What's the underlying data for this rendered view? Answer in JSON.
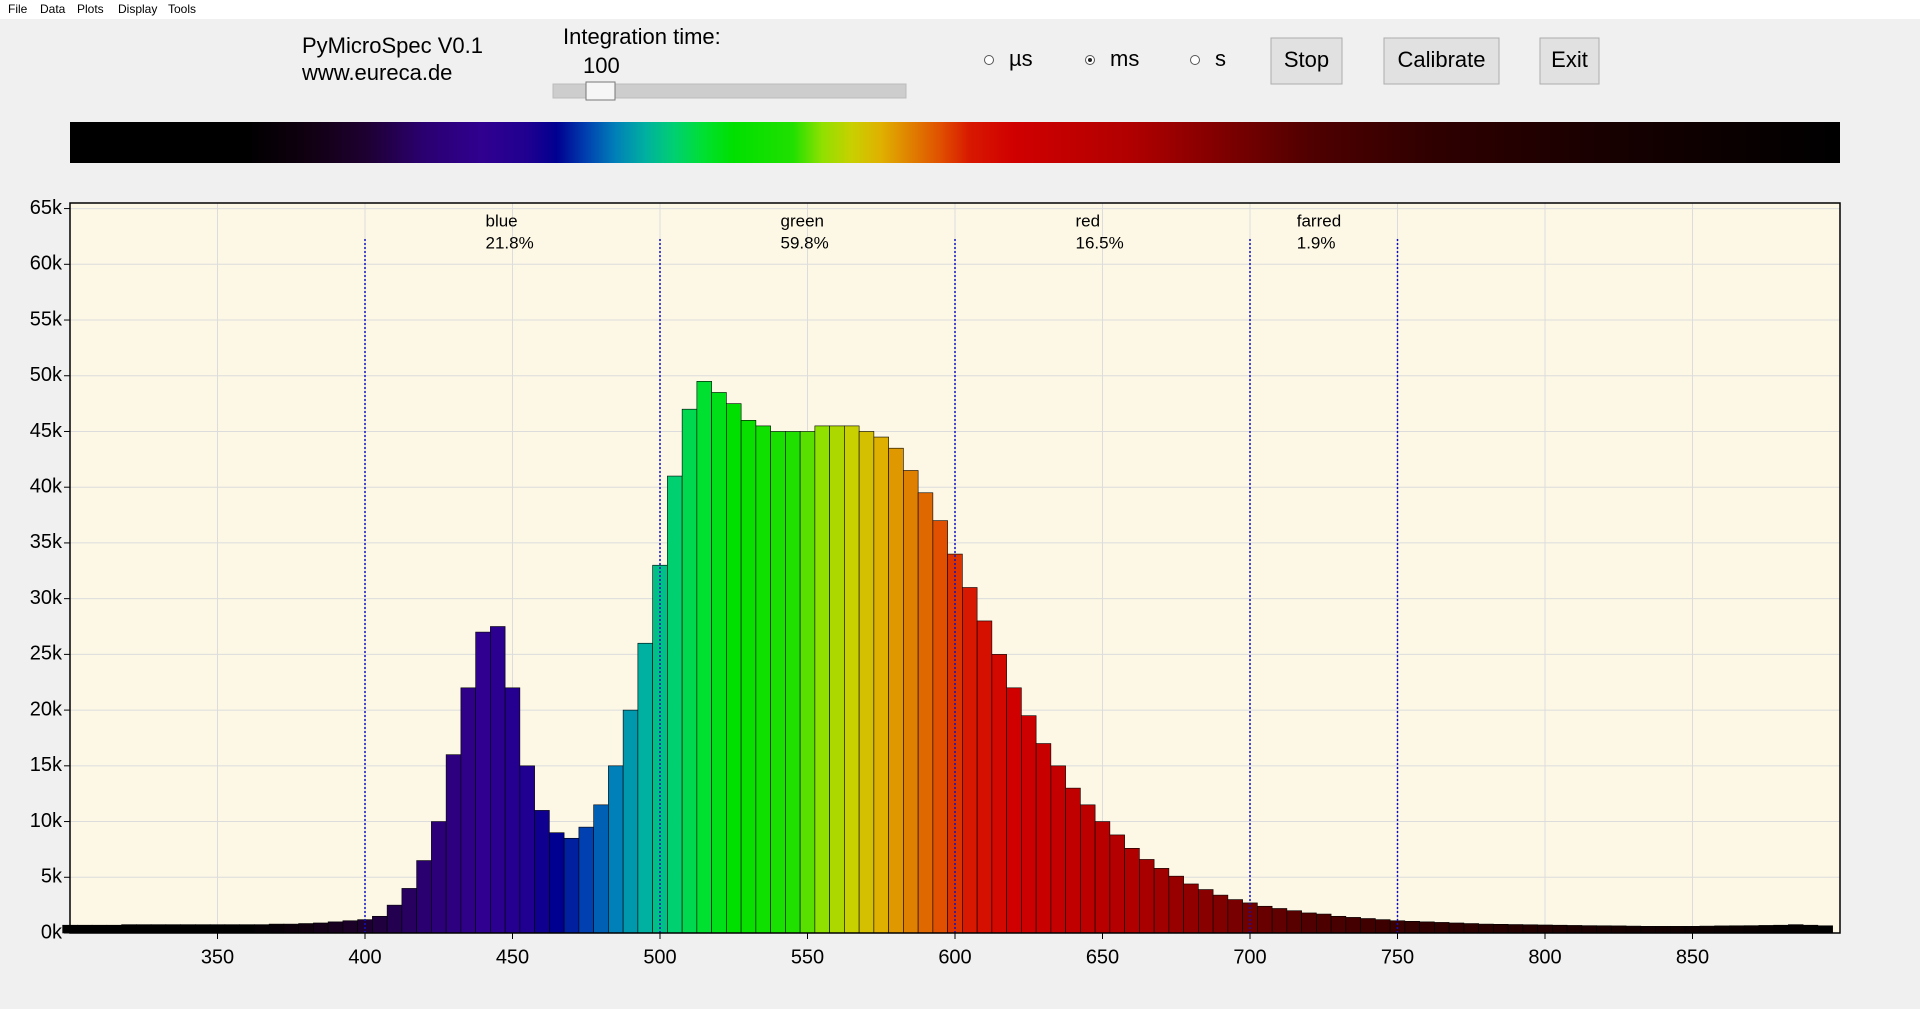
{
  "menu": [
    "File",
    "Data",
    "Plots",
    "Display",
    "Tools"
  ],
  "header": {
    "title": "PyMicroSpec V0.1",
    "url": "www.eureca.de"
  },
  "integration": {
    "label": "Integration time:",
    "value": 100
  },
  "units": {
    "options": [
      "µs",
      "ms",
      "s"
    ],
    "selected": 1
  },
  "buttons": [
    "Stop",
    "Calibrate",
    "Exit"
  ],
  "chart_data": {
    "type": "bar",
    "x": [
      300,
      305,
      310,
      315,
      320,
      325,
      330,
      335,
      340,
      345,
      350,
      355,
      360,
      365,
      370,
      375,
      380,
      385,
      390,
      395,
      400,
      405,
      410,
      415,
      420,
      425,
      430,
      435,
      440,
      445,
      450,
      455,
      460,
      465,
      470,
      475,
      480,
      485,
      490,
      495,
      500,
      505,
      510,
      515,
      520,
      525,
      530,
      535,
      540,
      545,
      550,
      555,
      560,
      565,
      570,
      575,
      580,
      585,
      590,
      595,
      600,
      605,
      610,
      615,
      620,
      625,
      630,
      635,
      640,
      645,
      650,
      655,
      660,
      665,
      670,
      675,
      680,
      685,
      690,
      695,
      700,
      705,
      710,
      715,
      720,
      725,
      730,
      735,
      740,
      745,
      750,
      755,
      760,
      765,
      770,
      775,
      780,
      785,
      790,
      795,
      800,
      805,
      810,
      815,
      820,
      825,
      830,
      835,
      840,
      845,
      850,
      855,
      860,
      865,
      870,
      875,
      880,
      885,
      890,
      895
    ],
    "values": [
      700,
      700,
      700,
      700,
      750,
      750,
      750,
      750,
      750,
      750,
      750,
      750,
      750,
      750,
      800,
      800,
      850,
      900,
      1000,
      1100,
      1200,
      1500,
      2500,
      4000,
      6500,
      10000,
      16000,
      22000,
      27000,
      27500,
      22000,
      15000,
      11000,
      9000,
      8500,
      9500,
      11500,
      15000,
      20000,
      26000,
      33000,
      41000,
      47000,
      49500,
      48500,
      47500,
      46000,
      45500,
      45000,
      45000,
      45000,
      45500,
      45500,
      45500,
      45000,
      44500,
      43500,
      41500,
      39500,
      37000,
      34000,
      31000,
      28000,
      25000,
      22000,
      19500,
      17000,
      15000,
      13000,
      11500,
      10000,
      8800,
      7600,
      6600,
      5800,
      5100,
      4400,
      3900,
      3400,
      3000,
      2700,
      2400,
      2200,
      2000,
      1800,
      1700,
      1500,
      1400,
      1300,
      1200,
      1100,
      1050,
      1000,
      950,
      900,
      850,
      800,
      780,
      760,
      740,
      720,
      700,
      680,
      660,
      650,
      640,
      620,
      600,
      600,
      600,
      600,
      620,
      640,
      650,
      660,
      680,
      700,
      750,
      700,
      650
    ],
    "xlim": [
      300,
      900
    ],
    "ylim": [
      0,
      65500
    ],
    "xticks": [
      350,
      400,
      450,
      500,
      550,
      600,
      650,
      700,
      750,
      800,
      850
    ],
    "yticks": [
      {
        "value": 0,
        "label": "0k"
      },
      {
        "value": 5000,
        "label": "5k"
      },
      {
        "value": 10000,
        "label": "10k"
      },
      {
        "value": 15000,
        "label": "15k"
      },
      {
        "value": 20000,
        "label": "20k"
      },
      {
        "value": 25000,
        "label": "25k"
      },
      {
        "value": 30000,
        "label": "30k"
      },
      {
        "value": 35000,
        "label": "35k"
      },
      {
        "value": 40000,
        "label": "40k"
      },
      {
        "value": 45000,
        "label": "45k"
      },
      {
        "value": 50000,
        "label": "50k"
      },
      {
        "value": 55000,
        "label": "55k"
      },
      {
        "value": 60000,
        "label": "60k"
      },
      {
        "value": 65000,
        "label": "65k"
      }
    ],
    "grid": true,
    "background": "#fdf8e6",
    "colormap": [
      {
        "x": 300,
        "color": "#000000"
      },
      {
        "x": 360,
        "color": "#000000"
      },
      {
        "x": 380,
        "color": "#100010"
      },
      {
        "x": 400,
        "color": "#1e0030"
      },
      {
        "x": 420,
        "color": "#2a0070"
      },
      {
        "x": 440,
        "color": "#300090"
      },
      {
        "x": 455,
        "color": "#200090"
      },
      {
        "x": 465,
        "color": "#000090"
      },
      {
        "x": 475,
        "color": "#0040b0"
      },
      {
        "x": 485,
        "color": "#0080b8"
      },
      {
        "x": 495,
        "color": "#00b0a0"
      },
      {
        "x": 505,
        "color": "#00d070"
      },
      {
        "x": 515,
        "color": "#00e030"
      },
      {
        "x": 525,
        "color": "#00e000"
      },
      {
        "x": 545,
        "color": "#20e000"
      },
      {
        "x": 555,
        "color": "#90e000"
      },
      {
        "x": 565,
        "color": "#c8d000"
      },
      {
        "x": 575,
        "color": "#e0b000"
      },
      {
        "x": 585,
        "color": "#e08000"
      },
      {
        "x": 595,
        "color": "#e05000"
      },
      {
        "x": 605,
        "color": "#d81800"
      },
      {
        "x": 620,
        "color": "#d00000"
      },
      {
        "x": 660,
        "color": "#b00000"
      },
      {
        "x": 690,
        "color": "#800000"
      },
      {
        "x": 720,
        "color": "#500000"
      },
      {
        "x": 760,
        "color": "#300000"
      },
      {
        "x": 820,
        "color": "#180000"
      },
      {
        "x": 870,
        "color": "#080000"
      },
      {
        "x": 900,
        "color": "#000000"
      }
    ],
    "boundaries": [
      400,
      500,
      600,
      700,
      750
    ],
    "regions": [
      {
        "name": "blue",
        "share": "21.8%"
      },
      {
        "name": "green",
        "share": "59.8%"
      },
      {
        "name": "red",
        "share": "16.5%"
      },
      {
        "name": "farred",
        "share": "1.9%"
      }
    ]
  }
}
